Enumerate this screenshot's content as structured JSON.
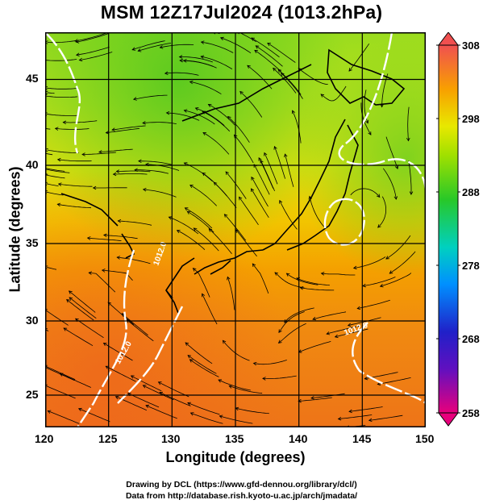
{
  "title": "MSM 12Z17Jul2024 (1013.2hPa)",
  "x_axis": {
    "label": "Longitude (degrees)",
    "ticks": [
      "120",
      "125",
      "130",
      "135",
      "140",
      "145",
      "150"
    ],
    "range": [
      120,
      150
    ]
  },
  "y_axis": {
    "label": "Latitude  (degrees)",
    "ticks": [
      "25",
      "30",
      "35",
      "40",
      "45"
    ],
    "range": [
      22.4,
      47.6
    ]
  },
  "colorbar": {
    "labels": [
      "308",
      "298",
      "288",
      "278",
      "268",
      "258"
    ],
    "range": [
      258,
      308
    ],
    "colors": [
      "#e8007c",
      "#2020c8",
      "#00a0ff",
      "#00d8a0",
      "#28c828",
      "#a0e000",
      "#e8e800",
      "#f8a000",
      "#f07830",
      "#f05050"
    ]
  },
  "contour_labels": [
    "1012.0",
    "1012.0",
    "1012.0"
  ],
  "credits": {
    "line1": "Drawing by DCL (https://www.gfd-dennou.org/library/dcl/)",
    "line2": "Data from http://database.rish.kyoto-u.ac.jp/arch/jmadata/"
  }
}
